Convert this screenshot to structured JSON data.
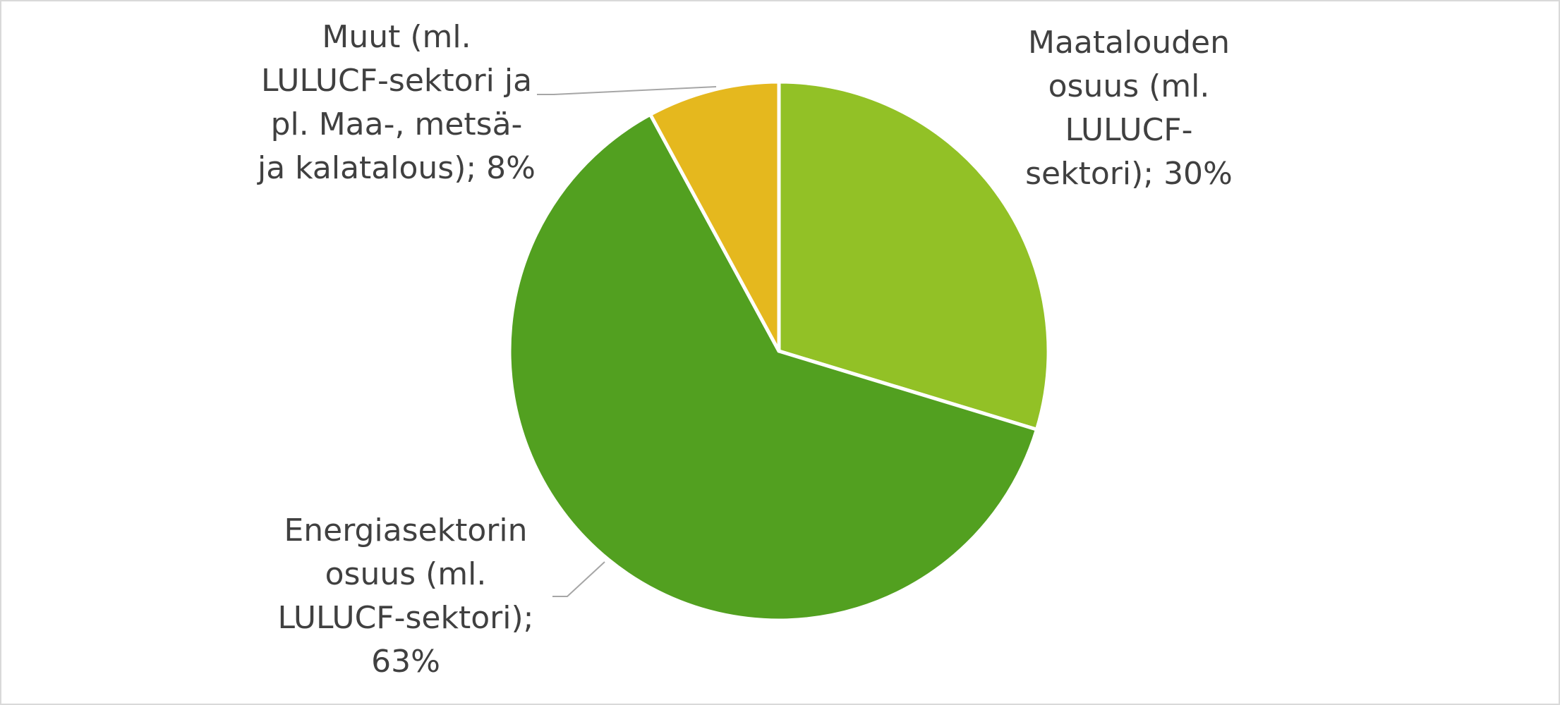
{
  "chart_data": {
    "type": "pie",
    "values": [
      30,
      63,
      8
    ],
    "value_labels": [
      "Maatalouden osuus (ml. LULUCF-sektori); 30%",
      "Energiasektorin osuus (ml. LULUCF-sektori); 63%",
      "Muut (ml. LULUCF-sektori ja pl. Maa-, metsä- ja kalatalous); 8%"
    ],
    "colors": [
      "#92c126",
      "#52a020",
      "#e5b81e"
    ]
  }
}
